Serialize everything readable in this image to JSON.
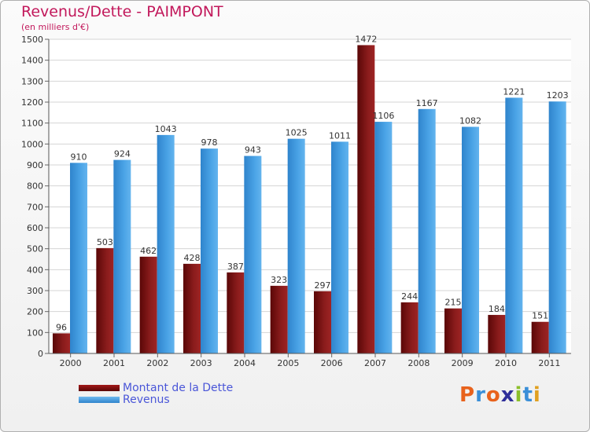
{
  "chart_data": {
    "type": "bar",
    "title": "Revenus/Dette - PAIMPONT",
    "subtitle": "(en milliers d'€)",
    "categories": [
      "2000",
      "2001",
      "2002",
      "2003",
      "2004",
      "2005",
      "2006",
      "2007",
      "2008",
      "2009",
      "2010",
      "2011"
    ],
    "series": [
      {
        "name": "Montant de la Dette",
        "color": "#6b0f0f",
        "values": [
          96,
          503,
          462,
          428,
          387,
          323,
          297,
          1472,
          244,
          215,
          184,
          151
        ]
      },
      {
        "name": "Revenus",
        "color": "#4aa3e6",
        "values": [
          910,
          924,
          1043,
          978,
          943,
          1025,
          1011,
          1106,
          1167,
          1082,
          1221,
          1203
        ]
      }
    ],
    "ylim": [
      0,
      1500
    ],
    "yticks": [
      0,
      100,
      200,
      300,
      400,
      500,
      600,
      700,
      800,
      900,
      1000,
      1100,
      1200,
      1300,
      1400,
      1500
    ],
    "grid": true,
    "legend": "bottom-left"
  },
  "brand": {
    "text": "Proxiti",
    "letters": [
      "P",
      "r",
      "o",
      "x",
      "i",
      "t",
      "i"
    ],
    "colors": [
      "#e8621c",
      "#3a8fd8",
      "#e8621c",
      "#2f2f9a",
      "#8cbf2a",
      "#3a8fd8",
      "#e0a020"
    ]
  }
}
